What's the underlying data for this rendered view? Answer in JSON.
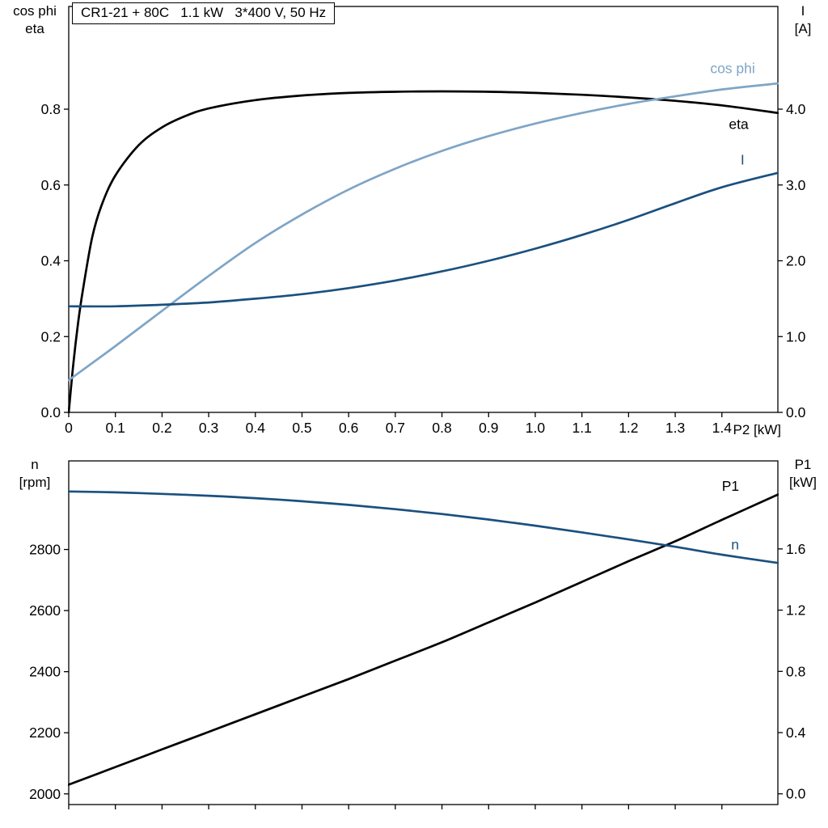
{
  "colors": {
    "black": "#000000",
    "light_blue": "#7FA5C6",
    "dark_blue": "#1A507F",
    "frame": "#000000"
  },
  "chart_data": [
    {
      "type": "line",
      "title": "CR1-21 + 80C   1.1 kW   3*400 V, 50 Hz",
      "x_axis": {
        "min": 0,
        "max": 1.52,
        "label": "P2 [kW]",
        "tick_values": [
          0,
          0.1,
          0.2,
          0.3,
          0.4,
          0.5,
          0.6,
          0.7,
          0.8,
          0.9,
          1.0,
          1.1,
          1.2,
          1.3,
          1.4
        ],
        "tick_labels": [
          "0",
          "0.1",
          "0.2",
          "0.3",
          "0.4",
          "0.5",
          "0.6",
          "0.7",
          "0.8",
          "0.9",
          "1.0",
          "1.1",
          "1.2",
          "1.3",
          "1.4"
        ]
      },
      "y_left": {
        "min": 0,
        "max": 1.071,
        "title_lines": [
          "cos phi",
          "eta"
        ],
        "tick_values": [
          0,
          0.2,
          0.4,
          0.6,
          0.8
        ],
        "tick_labels": [
          "0.0",
          "0.2",
          "0.4",
          "0.6",
          "0.8"
        ]
      },
      "y_right": {
        "min": 0,
        "max": 5.355,
        "title_lines": [
          "I",
          "[A]"
        ],
        "tick_values": [
          0,
          1,
          2,
          3,
          4
        ],
        "tick_labels": [
          "0.0",
          "1.0",
          "2.0",
          "3.0",
          "4.0"
        ]
      },
      "series": [
        {
          "name": "eta",
          "axis": "left",
          "color": "black",
          "label": {
            "text": "eta",
            "x": 1.415,
            "y": 0.748
          },
          "points": [
            [
              0,
              0
            ],
            [
              0.01,
              0.13
            ],
            [
              0.02,
              0.235
            ],
            [
              0.03,
              0.32
            ],
            [
              0.05,
              0.46
            ],
            [
              0.07,
              0.545
            ],
            [
              0.1,
              0.625
            ],
            [
              0.15,
              0.705
            ],
            [
              0.2,
              0.752
            ],
            [
              0.25,
              0.782
            ],
            [
              0.3,
              0.802
            ],
            [
              0.4,
              0.824
            ],
            [
              0.5,
              0.836
            ],
            [
              0.6,
              0.843
            ],
            [
              0.7,
              0.846
            ],
            [
              0.8,
              0.847
            ],
            [
              0.9,
              0.846
            ],
            [
              1.0,
              0.843
            ],
            [
              1.1,
              0.838
            ],
            [
              1.2,
              0.831
            ],
            [
              1.3,
              0.822
            ],
            [
              1.4,
              0.81
            ],
            [
              1.52,
              0.79
            ]
          ]
        },
        {
          "name": "cos phi",
          "axis": "left",
          "color": "light_blue",
          "label": {
            "text": "cos phi",
            "x": 1.375,
            "y": 0.895
          },
          "points": [
            [
              0,
              0.085
            ],
            [
              0.1,
              0.175
            ],
            [
              0.2,
              0.268
            ],
            [
              0.3,
              0.36
            ],
            [
              0.4,
              0.447
            ],
            [
              0.5,
              0.522
            ],
            [
              0.6,
              0.588
            ],
            [
              0.7,
              0.643
            ],
            [
              0.8,
              0.69
            ],
            [
              0.9,
              0.729
            ],
            [
              1.0,
              0.762
            ],
            [
              1.1,
              0.79
            ],
            [
              1.2,
              0.814
            ],
            [
              1.3,
              0.834
            ],
            [
              1.4,
              0.852
            ],
            [
              1.52,
              0.868
            ]
          ]
        },
        {
          "name": "I",
          "axis": "right",
          "color": "dark_blue",
          "label": {
            "text": "I",
            "x": 1.44,
            "y": 3.27
          },
          "points": [
            [
              0,
              1.4
            ],
            [
              0.1,
              1.4
            ],
            [
              0.2,
              1.42
            ],
            [
              0.3,
              1.45
            ],
            [
              0.4,
              1.5
            ],
            [
              0.5,
              1.56
            ],
            [
              0.6,
              1.64
            ],
            [
              0.7,
              1.74
            ],
            [
              0.8,
              1.86
            ],
            [
              0.9,
              2.0
            ],
            [
              1.0,
              2.16
            ],
            [
              1.1,
              2.34
            ],
            [
              1.2,
              2.54
            ],
            [
              1.3,
              2.76
            ],
            [
              1.4,
              2.97
            ],
            [
              1.52,
              3.16
            ]
          ]
        }
      ]
    },
    {
      "type": "line",
      "title": "",
      "x_axis": {
        "min": 0,
        "max": 1.52,
        "label": "",
        "tick_values": [
          0,
          0.1,
          0.2,
          0.3,
          0.4,
          0.5,
          0.6,
          0.7,
          0.8,
          0.9,
          1.0,
          1.1,
          1.2,
          1.3,
          1.4
        ],
        "tick_labels": []
      },
      "y_left": {
        "min": 1965,
        "max": 3090,
        "title_lines": [
          "n",
          "[rpm]"
        ],
        "tick_values": [
          2000,
          2200,
          2400,
          2600,
          2800
        ],
        "tick_labels": [
          "2000",
          "2200",
          "2400",
          "2600",
          "2800"
        ]
      },
      "y_right": {
        "min": -0.07,
        "max": 2.175,
        "title_lines": [
          "P1",
          "[kW]"
        ],
        "tick_values": [
          0,
          0.4,
          0.8,
          1.2,
          1.6
        ],
        "tick_labels": [
          "0.0",
          "0.4",
          "0.8",
          "1.2",
          "1.6"
        ]
      },
      "series": [
        {
          "name": "P1",
          "axis": "right",
          "color": "black",
          "label": {
            "text": "P1",
            "x": 1.4,
            "y": 1.98
          },
          "points": [
            [
              0,
              0.06
            ],
            [
              0.1,
              0.175
            ],
            [
              0.2,
              0.29
            ],
            [
              0.3,
              0.405
            ],
            [
              0.4,
              0.52
            ],
            [
              0.5,
              0.635
            ],
            [
              0.6,
              0.75
            ],
            [
              0.7,
              0.87
            ],
            [
              0.8,
              0.99
            ],
            [
              0.9,
              1.12
            ],
            [
              1.0,
              1.25
            ],
            [
              1.1,
              1.385
            ],
            [
              1.2,
              1.52
            ],
            [
              1.3,
              1.65
            ],
            [
              1.4,
              1.79
            ],
            [
              1.52,
              1.955
            ]
          ]
        },
        {
          "name": "n",
          "axis": "left",
          "color": "dark_blue",
          "label": {
            "text": "n",
            "x": 1.42,
            "y": 2800
          },
          "points": [
            [
              0,
              2990
            ],
            [
              0.1,
              2987
            ],
            [
              0.2,
              2982
            ],
            [
              0.3,
              2976
            ],
            [
              0.4,
              2968
            ],
            [
              0.5,
              2958
            ],
            [
              0.6,
              2946
            ],
            [
              0.7,
              2932
            ],
            [
              0.8,
              2916
            ],
            [
              0.9,
              2898
            ],
            [
              1.0,
              2878
            ],
            [
              1.1,
              2856
            ],
            [
              1.2,
              2833
            ],
            [
              1.3,
              2809
            ],
            [
              1.4,
              2783
            ],
            [
              1.52,
              2756
            ]
          ]
        }
      ]
    }
  ]
}
